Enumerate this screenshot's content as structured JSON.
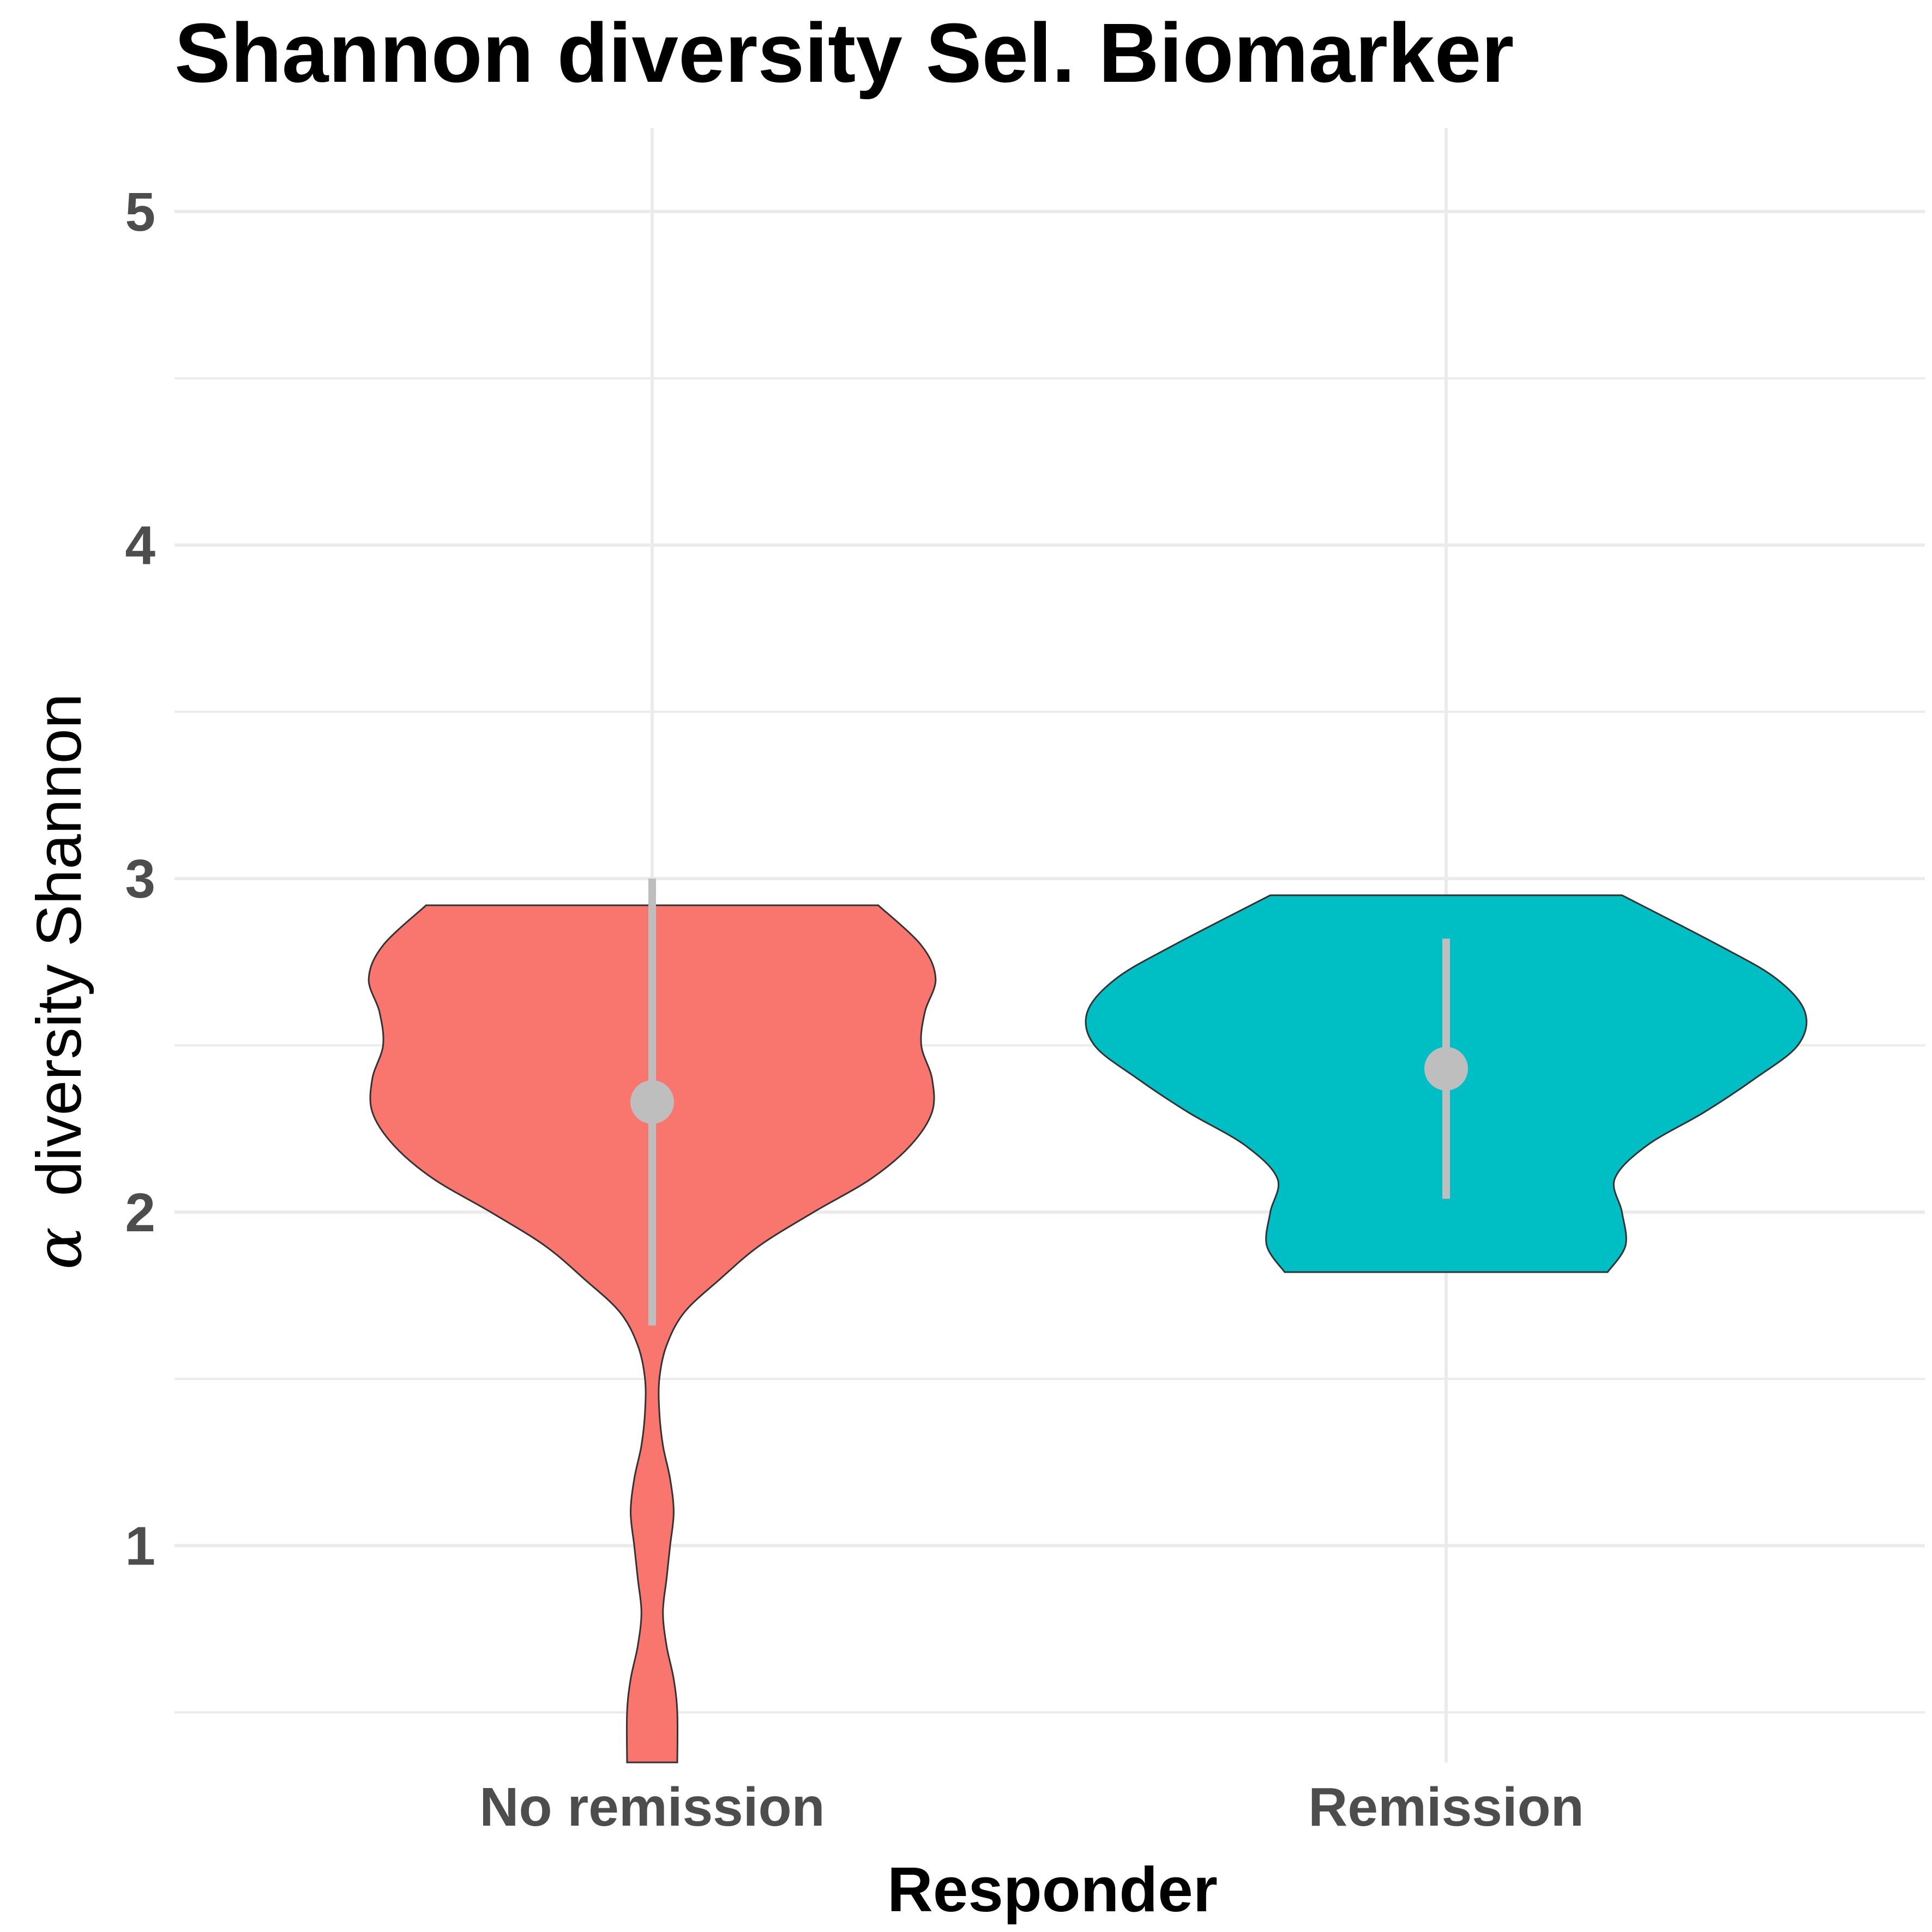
{
  "chart_data": {
    "type": "violin",
    "title": "Shannon diversity Sel. Biomarker",
    "xlabel": "Responder",
    "ylabel_symbol": "α",
    "ylabel": "diversity Shannon",
    "categories": [
      "No remission",
      "Remission"
    ],
    "ylim": [
      0.35,
      5.25
    ],
    "yticks": [
      "1",
      "2",
      "3",
      "4",
      "5"
    ],
    "grid": true,
    "legend": "none",
    "series": [
      {
        "category": "No remission",
        "color": "#F8766D",
        "y_min": 0.35,
        "y_max": 2.92,
        "summary": {
          "point": 2.33,
          "lower": 1.66,
          "upper": 3.0
        },
        "density_profile": [
          [
            0.35,
            0.07
          ],
          [
            0.5,
            0.07
          ],
          [
            0.6,
            0.06
          ],
          [
            0.7,
            0.04
          ],
          [
            0.8,
            0.03
          ],
          [
            0.9,
            0.04
          ],
          [
            1.0,
            0.05
          ],
          [
            1.1,
            0.06
          ],
          [
            1.2,
            0.05
          ],
          [
            1.3,
            0.03
          ],
          [
            1.4,
            0.02
          ],
          [
            1.5,
            0.02
          ],
          [
            1.6,
            0.04
          ],
          [
            1.7,
            0.09
          ],
          [
            1.8,
            0.19
          ],
          [
            1.9,
            0.3
          ],
          [
            2.0,
            0.45
          ],
          [
            2.1,
            0.61
          ],
          [
            2.2,
            0.72
          ],
          [
            2.3,
            0.78
          ],
          [
            2.4,
            0.78
          ],
          [
            2.5,
            0.75
          ],
          [
            2.6,
            0.76
          ],
          [
            2.7,
            0.79
          ],
          [
            2.8,
            0.75
          ],
          [
            2.92,
            0.63
          ]
        ]
      },
      {
        "category": "Remission",
        "color": "#00BFC4",
        "y_min": 1.82,
        "y_max": 2.95,
        "summary": {
          "point": 2.43,
          "lower": 2.04,
          "upper": 2.82
        },
        "density_profile": [
          [
            1.82,
            0.45
          ],
          [
            1.9,
            0.5
          ],
          [
            2.0,
            0.49
          ],
          [
            2.1,
            0.47
          ],
          [
            2.2,
            0.56
          ],
          [
            2.3,
            0.72
          ],
          [
            2.4,
            0.86
          ],
          [
            2.5,
            0.98
          ],
          [
            2.6,
            1.0
          ],
          [
            2.7,
            0.92
          ],
          [
            2.8,
            0.76
          ],
          [
            2.95,
            0.49
          ]
        ]
      }
    ]
  }
}
